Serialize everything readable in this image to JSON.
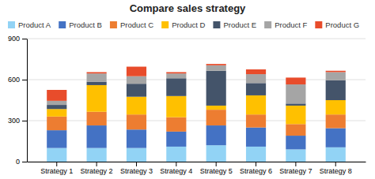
{
  "chart_data": {
    "type": "bar",
    "stacked": true,
    "title": "Compare sales strategy",
    "categories": [
      "Strategy 1",
      "Strategy 2",
      "Strategy 3",
      "Strategy 4",
      "Strategy 5",
      "Strategy 6",
      "Strategy 7",
      "Strategy 8"
    ],
    "series": [
      {
        "name": "Product A",
        "color": "#92d3f5",
        "values": [
          100,
          100,
          100,
          110,
          120,
          110,
          90,
          105
        ]
      },
      {
        "name": "Product B",
        "color": "#4472c4",
        "values": [
          130,
          165,
          135,
          110,
          145,
          140,
          100,
          140
        ]
      },
      {
        "name": "Product C",
        "color": "#ed7d31",
        "values": [
          100,
          100,
          110,
          105,
          115,
          95,
          85,
          100
        ]
      },
      {
        "name": "Product D",
        "color": "#ffc000",
        "values": [
          55,
          195,
          130,
          155,
          30,
          140,
          135,
          105
        ]
      },
      {
        "name": "Product E",
        "color": "#44546a",
        "values": [
          30,
          25,
          95,
          130,
          255,
          90,
          15,
          145
        ]
      },
      {
        "name": "Product F",
        "color": "#a5a5a5",
        "values": [
          30,
          60,
          55,
          35,
          40,
          65,
          140,
          60
        ]
      },
      {
        "name": "Product G",
        "color": "#e84c2b",
        "values": [
          80,
          10,
          70,
          10,
          10,
          35,
          50,
          10
        ]
      }
    ],
    "ylim": [
      0,
      900
    ],
    "yticks": [
      0,
      300,
      600,
      900
    ],
    "grid": true,
    "legend": "upper left"
  }
}
